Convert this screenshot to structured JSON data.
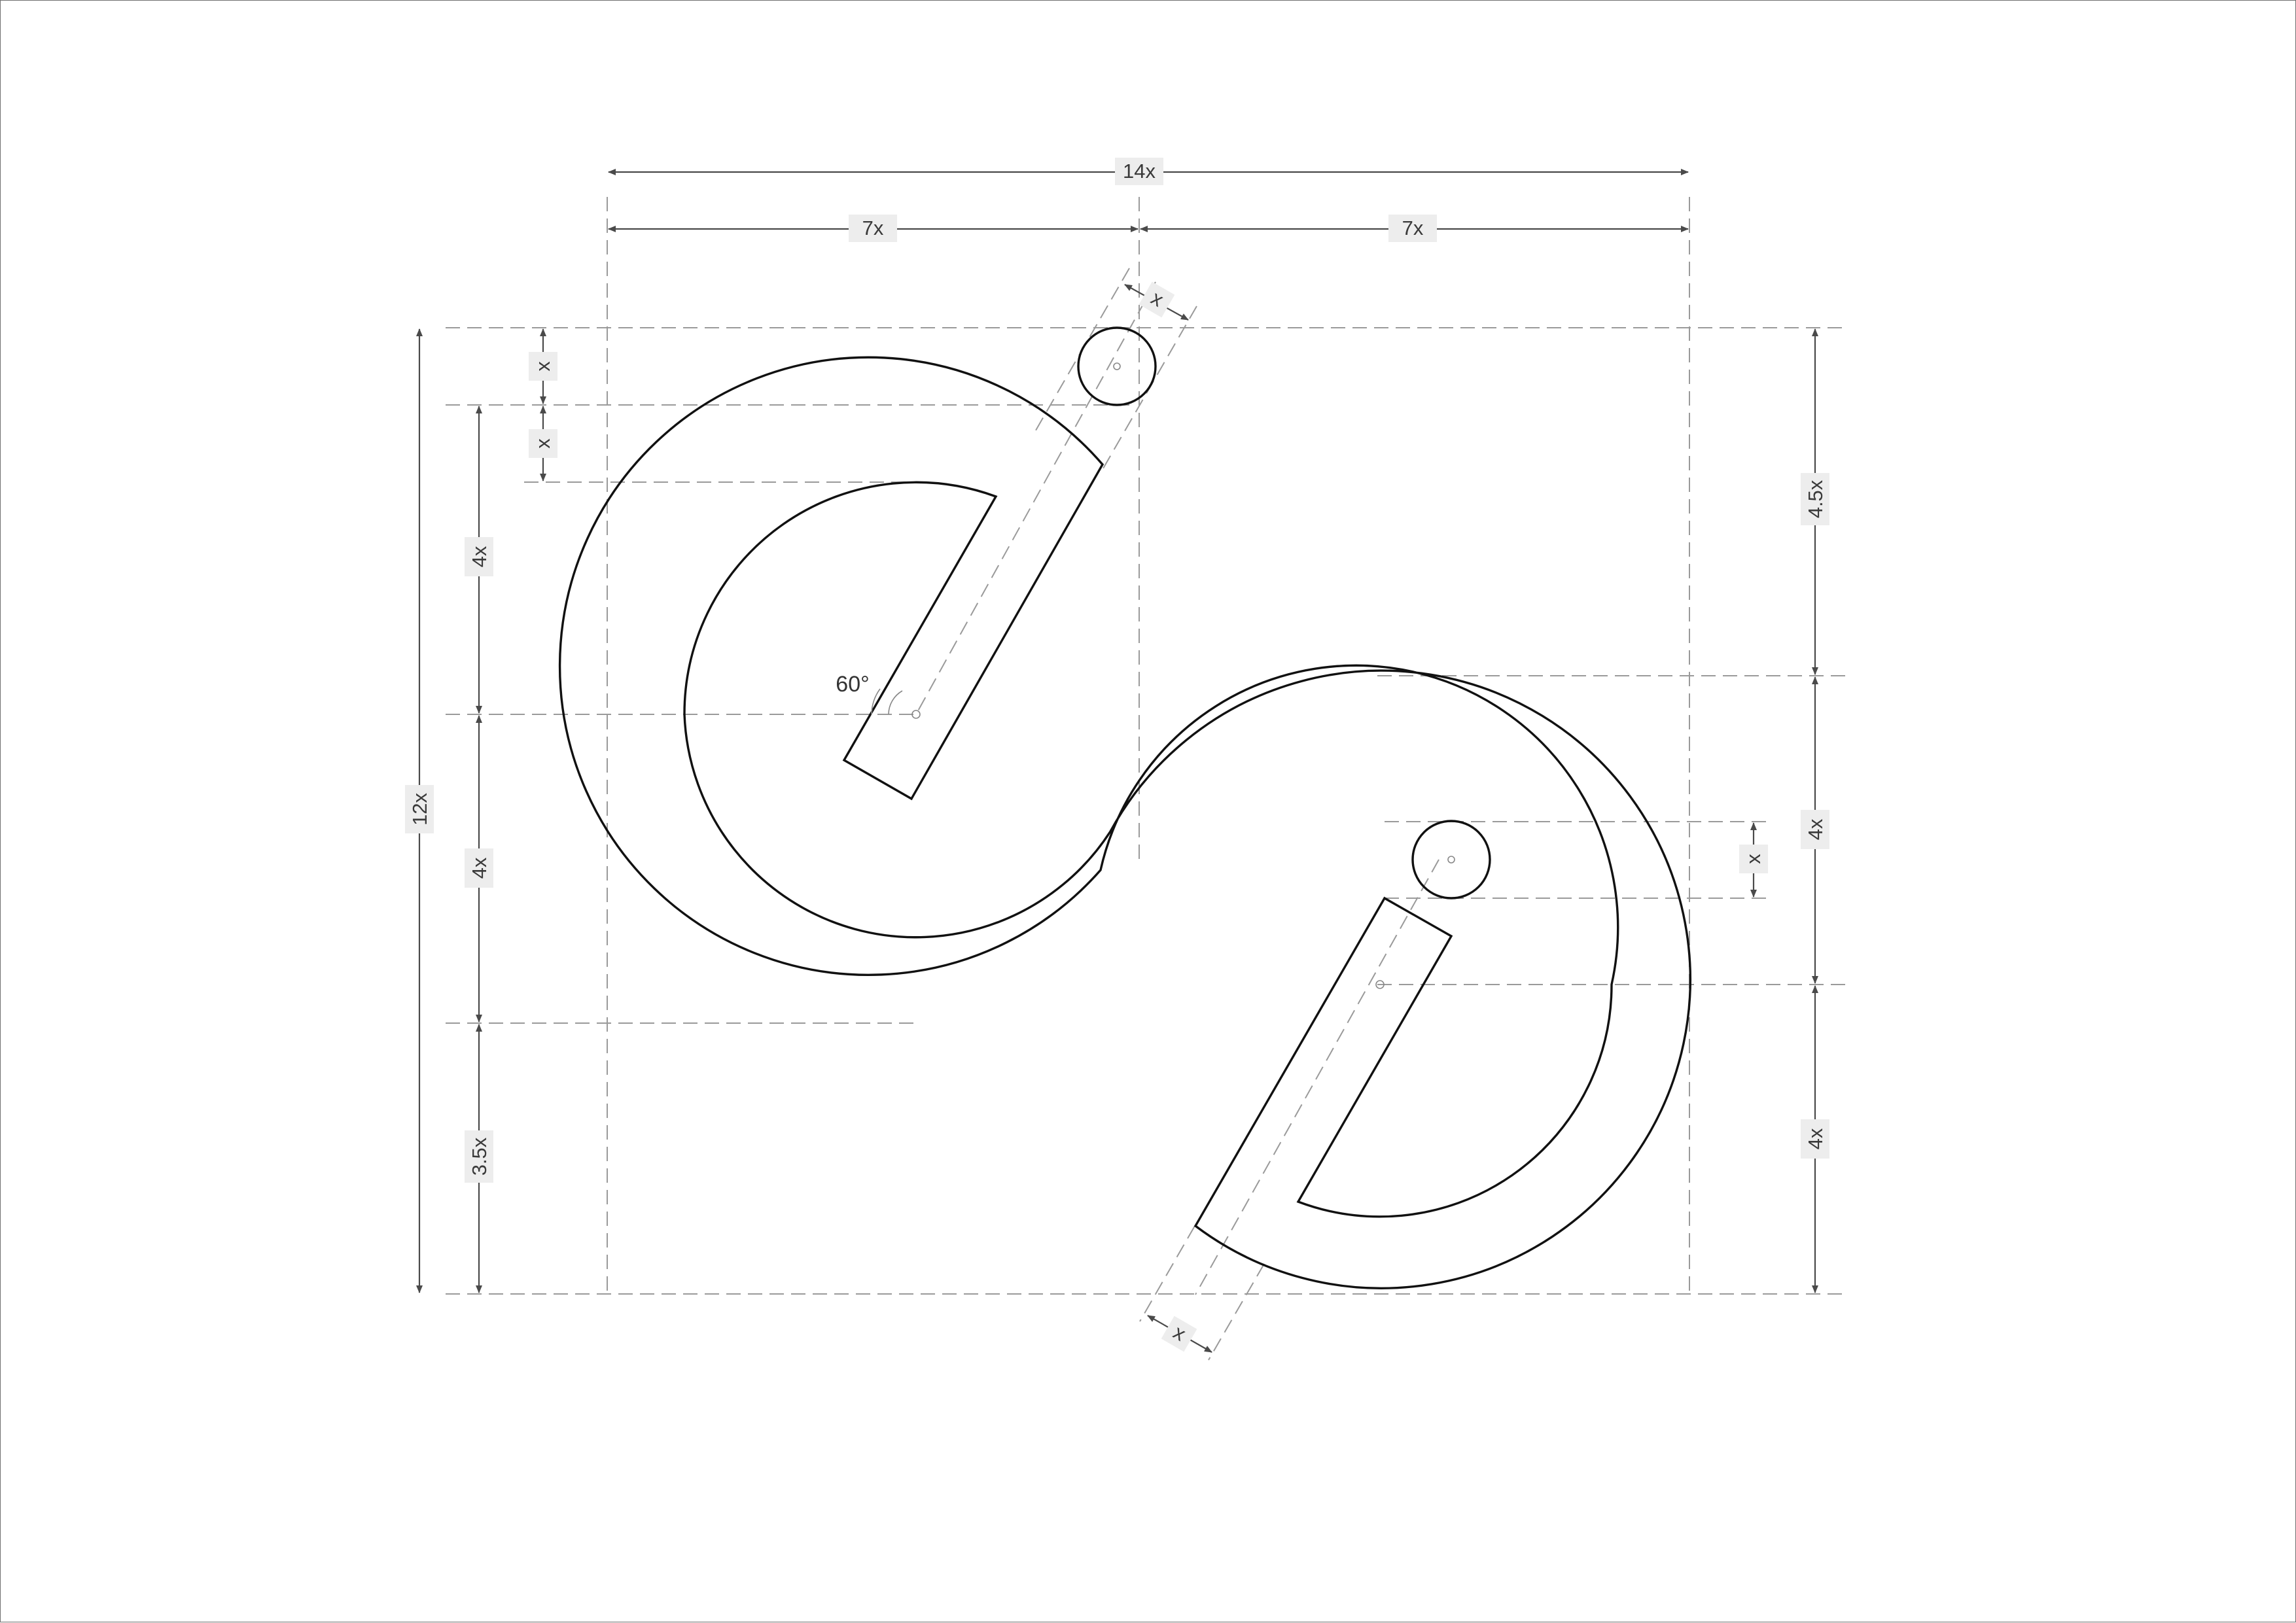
{
  "drawing": {
    "type": "logo-construction-grid",
    "labels": {
      "total_width": "14x",
      "left_half_width": "7x",
      "right_half_width": "7x",
      "total_height": "12x",
      "left_top_dot": "x",
      "left_top_gap": "x",
      "left_upper": "4x",
      "left_lower": "4x",
      "left_bottom": "3.5x",
      "right_top": "4.5x",
      "right_middle": "4x",
      "right_bottom": "4x",
      "right_dot": "x",
      "stem_width_top": "x",
      "stem_width_bottom": "x",
      "angle": "60°"
    },
    "unit": "x",
    "total_width_units": 14,
    "total_height_units": 12,
    "stem_angle_degrees": 60,
    "colors": {
      "outline": "#111111",
      "guides": "#9a9a9a",
      "dimension_lines": "#4a4a4a",
      "label_background": "#ededed"
    }
  }
}
